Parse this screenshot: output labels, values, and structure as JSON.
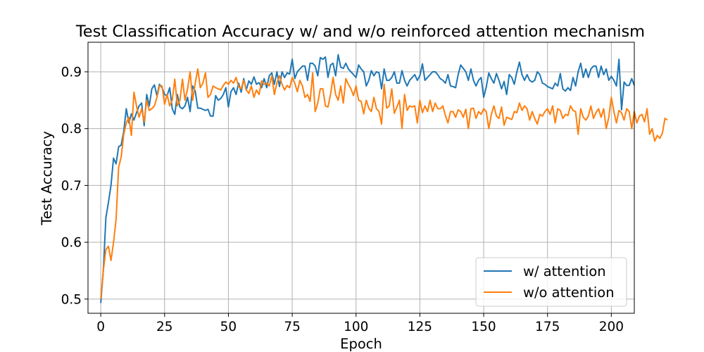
{
  "chart_data": {
    "type": "line",
    "title": "Test Classification Accuracy w/ and w/o reinforced attention mechanism",
    "xlabel": "Epoch",
    "ylabel": "Test Accuracy",
    "xlim": [
      -5,
      209
    ],
    "ylim": [
      0.475,
      0.952
    ],
    "xticks": [
      0,
      25,
      50,
      75,
      100,
      125,
      150,
      175,
      200
    ],
    "yticks": [
      0.5,
      0.6,
      0.7,
      0.8,
      0.9
    ],
    "xtick_labels": [
      "0",
      "25",
      "50",
      "75",
      "100",
      "125",
      "150",
      "175",
      "200"
    ],
    "ytick_labels": [
      "0.5",
      "0.6",
      "0.7",
      "0.8",
      "0.9"
    ],
    "grid": true,
    "legend": "lower-right",
    "series": [
      {
        "name": "w/ attention",
        "color": "#1f77b4",
        "values": [
          0.493,
          0.55,
          0.643,
          0.67,
          0.7,
          0.748,
          0.738,
          0.768,
          0.771,
          0.795,
          0.835,
          0.81,
          0.826,
          0.815,
          0.828,
          0.84,
          0.845,
          0.805,
          0.86,
          0.84,
          0.87,
          0.877,
          0.858,
          0.878,
          0.872,
          0.86,
          0.858,
          0.872,
          0.835,
          0.825,
          0.86,
          0.838,
          0.835,
          0.84,
          0.855,
          0.83,
          0.875,
          0.866,
          0.836,
          0.836,
          0.834,
          0.832,
          0.834,
          0.822,
          0.822,
          0.858,
          0.85,
          0.853,
          0.86,
          0.872,
          0.838,
          0.865,
          0.872,
          0.86,
          0.88,
          0.864,
          0.888,
          0.868,
          0.884,
          0.878,
          0.891,
          0.878,
          0.881,
          0.872,
          0.888,
          0.872,
          0.893,
          0.898,
          0.878,
          0.9,
          0.874,
          0.9,
          0.89,
          0.898,
          0.896,
          0.922,
          0.888,
          0.9,
          0.905,
          0.91,
          0.91,
          0.885,
          0.915,
          0.915,
          0.91,
          0.893,
          0.925,
          0.922,
          0.926,
          0.89,
          0.912,
          0.915,
          0.893,
          0.93,
          0.908,
          0.906,
          0.915,
          0.905,
          0.9,
          0.895,
          0.89,
          0.912,
          0.905,
          0.9,
          0.875,
          0.885,
          0.902,
          0.893,
          0.9,
          0.898,
          0.87,
          0.905,
          0.885,
          0.885,
          0.89,
          0.9,
          0.88,
          0.88,
          0.902,
          0.885,
          0.875,
          0.885,
          0.89,
          0.895,
          0.885,
          0.893,
          0.914,
          0.885,
          0.89,
          0.895,
          0.9,
          0.9,
          0.895,
          0.888,
          0.885,
          0.88,
          0.895,
          0.875,
          0.874,
          0.872,
          0.895,
          0.912,
          0.906,
          0.9,
          0.885,
          0.905,
          0.885,
          0.875,
          0.885,
          0.89,
          0.855,
          0.873,
          0.898,
          0.888,
          0.88,
          0.897,
          0.885,
          0.87,
          0.883,
          0.86,
          0.895,
          0.89,
          0.878,
          0.9,
          0.917,
          0.895,
          0.885,
          0.895,
          0.885,
          0.882,
          0.885,
          0.9,
          0.895,
          0.88,
          0.878,
          0.874,
          0.872,
          0.87,
          0.88,
          0.875,
          0.897,
          0.87,
          0.866,
          0.872,
          0.867,
          0.89,
          0.875,
          0.9,
          0.915,
          0.89,
          0.905,
          0.89,
          0.905,
          0.91,
          0.91,
          0.89,
          0.91,
          0.895,
          0.905,
          0.885,
          0.892,
          0.885,
          0.875,
          0.922,
          0.833,
          0.882,
          0.876,
          0.876,
          0.888,
          0.876
        ]
      },
      {
        "name": "w/o attention",
        "color": "#ff7f0e",
        "values": [
          0.5,
          0.55,
          0.587,
          0.593,
          0.568,
          0.6,
          0.64,
          0.732,
          0.75,
          0.79,
          0.81,
          0.82,
          0.788,
          0.864,
          0.84,
          0.82,
          0.835,
          0.812,
          0.85,
          0.832,
          0.835,
          0.84,
          0.855,
          0.875,
          0.875,
          0.843,
          0.86,
          0.84,
          0.85,
          0.887,
          0.84,
          0.85,
          0.887,
          0.85,
          0.87,
          0.9,
          0.85,
          0.88,
          0.905,
          0.872,
          0.88,
          0.898,
          0.855,
          0.86,
          0.875,
          0.872,
          0.87,
          0.868,
          0.876,
          0.882,
          0.878,
          0.885,
          0.88,
          0.89,
          0.874,
          0.87,
          0.885,
          0.868,
          0.862,
          0.875,
          0.855,
          0.868,
          0.86,
          0.884,
          0.878,
          0.88,
          0.875,
          0.893,
          0.86,
          0.88,
          0.893,
          0.878,
          0.868,
          0.876,
          0.872,
          0.89,
          0.88,
          0.865,
          0.885,
          0.875,
          0.855,
          0.86,
          0.848,
          0.898,
          0.83,
          0.845,
          0.87,
          0.87,
          0.84,
          0.838,
          0.86,
          0.89,
          0.86,
          0.85,
          0.875,
          0.845,
          0.888,
          0.878,
          0.87,
          0.858,
          0.875,
          0.85,
          0.848,
          0.826,
          0.85,
          0.836,
          0.83,
          0.855,
          0.835,
          0.83,
          0.808,
          0.878,
          0.836,
          0.84,
          0.87,
          0.827,
          0.838,
          0.85,
          0.8,
          0.86,
          0.832,
          0.84,
          0.838,
          0.84,
          0.81,
          0.85,
          0.828,
          0.84,
          0.83,
          0.85,
          0.83,
          0.845,
          0.835,
          0.835,
          0.84,
          0.823,
          0.81,
          0.83,
          0.83,
          0.82,
          0.833,
          0.83,
          0.82,
          0.834,
          0.8,
          0.835,
          0.836,
          0.818,
          0.83,
          0.825,
          0.835,
          0.83,
          0.8,
          0.825,
          0.84,
          0.822,
          0.818,
          0.838,
          0.806,
          0.82,
          0.818,
          0.816,
          0.83,
          0.828,
          0.845,
          0.832,
          0.84,
          0.835,
          0.815,
          0.83,
          0.818,
          0.808,
          0.825,
          0.822,
          0.83,
          0.835,
          0.825,
          0.84,
          0.81,
          0.835,
          0.832,
          0.818,
          0.825,
          0.823,
          0.84,
          0.832,
          0.83,
          0.79,
          0.835,
          0.82,
          0.815,
          0.822,
          0.84,
          0.818,
          0.828,
          0.835,
          0.82,
          0.835,
          0.8,
          0.82,
          0.855,
          0.83,
          0.81,
          0.832,
          0.828,
          0.815,
          0.835,
          0.83,
          0.8,
          0.83,
          0.81,
          0.822,
          0.825,
          0.812,
          0.835,
          0.79,
          0.8,
          0.778,
          0.788,
          0.783,
          0.792,
          0.818,
          0.815
        ]
      }
    ]
  }
}
